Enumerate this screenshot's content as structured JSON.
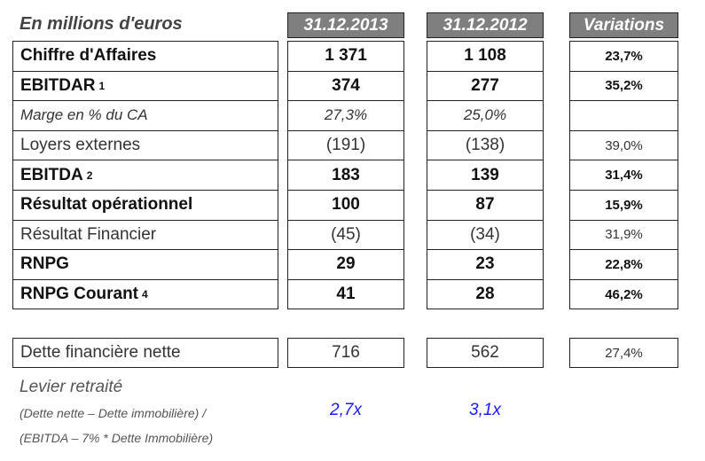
{
  "header": {
    "label": "En millions d'euros",
    "columns": [
      "31.12.2013",
      "31.12.2012",
      "Variations"
    ]
  },
  "rows": [
    {
      "label": "Chiffre d'Affaires",
      "style": "bold",
      "y2013": "1 371",
      "y2012": "1 108",
      "variation": "23,7%"
    },
    {
      "label": "EBITDAR",
      "note": "1",
      "style": "bold",
      "y2013": "374",
      "y2012": "277",
      "variation": "35,2%"
    },
    {
      "label": "Marge en % du CA",
      "style": "italic",
      "y2013": "27,3%",
      "y2012": "25,0%"
    },
    {
      "label": "Loyers externes",
      "style": "normal",
      "y2013": "(191)",
      "y2012": "(138)",
      "variation": "39,0%"
    },
    {
      "label": "EBITDA",
      "note": "2",
      "style": "bold",
      "y2013": "183",
      "y2012": "139",
      "variation": "31,4%"
    },
    {
      "label": "Résultat opérationnel",
      "style": "bold",
      "y2013": "100",
      "y2012": "87",
      "variation": "15,9%"
    },
    {
      "label": "Résultat Financier",
      "style": "normal",
      "y2013": "(45)",
      "y2012": "(34)",
      "variation": "31,9%"
    },
    {
      "label": "RNPG",
      "style": "bold",
      "y2013": "29",
      "y2012": "23",
      "variation": "22,8%"
    },
    {
      "label": "RNPG Courant",
      "note": "4",
      "style": "bold",
      "y2013": "41",
      "y2012": "28",
      "variation": "46,2%"
    }
  ],
  "debt": {
    "label": "Dette financière nette",
    "style": "normal",
    "y2013": "716",
    "y2012": "562",
    "variation": "27,4%"
  },
  "leverage": {
    "label": "Levier retraité",
    "formula": [
      "(Dette nette – Dette immobilière) /",
      "(EBITDA – 7% * Dette Immobilière)"
    ],
    "y2013": "2,7x",
    "y2012": "3,1x"
  }
}
